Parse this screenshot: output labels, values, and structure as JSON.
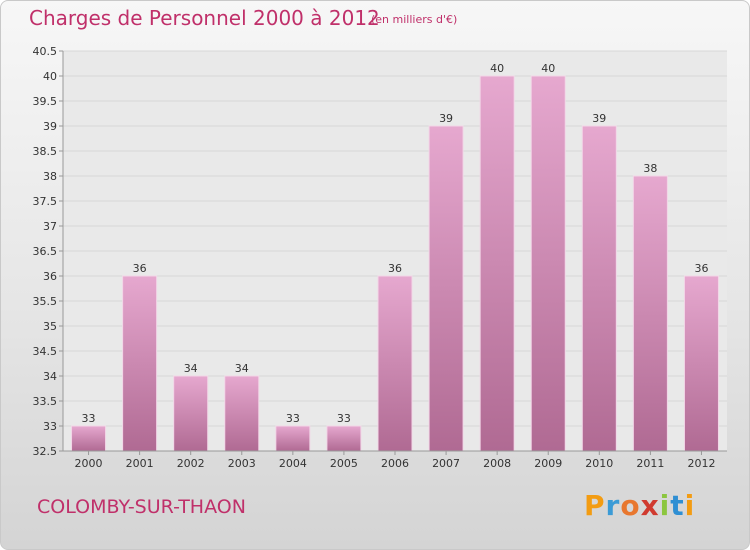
{
  "header": {
    "title": "Charges de Personnel 2000 à 2012",
    "subtitle": "(en milliers d'€)"
  },
  "footer": {
    "city": "COLOMBY-SUR-THAON",
    "logo": "Proxiti"
  },
  "colors": {
    "title": "#c0306a",
    "bar_top": "#e6a8cf",
    "bar_bottom": "#b06a93",
    "grid": "#d8d8d8"
  },
  "chart_data": {
    "type": "bar",
    "title": "Charges de Personnel 2000 à 2012",
    "subtitle": "(en milliers d'€)",
    "categories": [
      "2000",
      "2001",
      "2002",
      "2003",
      "2004",
      "2005",
      "2006",
      "2007",
      "2008",
      "2009",
      "2010",
      "2011",
      "2012"
    ],
    "values": [
      33,
      36,
      34,
      34,
      33,
      33,
      36,
      39,
      40,
      40,
      39,
      38,
      36
    ],
    "ylim": [
      32.5,
      40.5
    ],
    "yticks": [
      "32.5",
      "33",
      "33.5",
      "34",
      "34.5",
      "35",
      "35.5",
      "36",
      "36.5",
      "37",
      "37.5",
      "38",
      "38.5",
      "39",
      "39.5",
      "40",
      "40.5"
    ],
    "grid": true,
    "data_labels": true
  }
}
